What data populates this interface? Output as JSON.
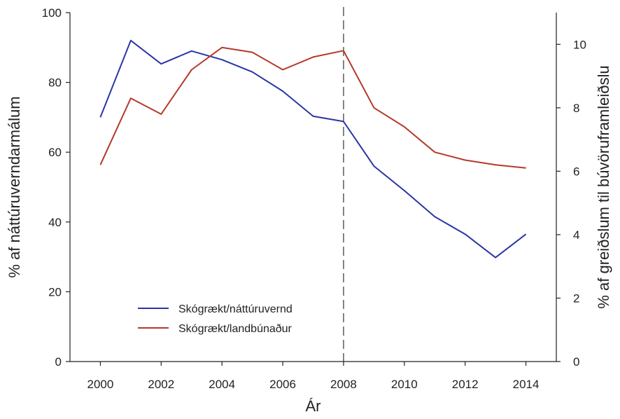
{
  "chart_data": {
    "type": "line",
    "xlabel": "Ár",
    "ylabel_left": "% af náttúruverndarmálum",
    "ylabel_right": "% af greiðslum til búvöruframleiðslu",
    "x_ticks": [
      2000,
      2002,
      2004,
      2006,
      2008,
      2010,
      2012,
      2014
    ],
    "x_range": [
      1999,
      2015
    ],
    "y_left_range": [
      0,
      100
    ],
    "y_left_ticks": [
      0,
      20,
      40,
      60,
      80,
      100
    ],
    "y_right_range": [
      0,
      11
    ],
    "y_right_ticks": [
      0,
      2,
      4,
      6,
      8,
      10
    ],
    "reference_line_x": 2008,
    "legend_position": "lower-left",
    "series": [
      {
        "name": "Skógrækt/náttúruvernd",
        "axis": "left",
        "color": "#2b35a6",
        "x": [
          2000,
          2001,
          2002,
          2003,
          2004,
          2005,
          2006,
          2007,
          2008,
          2009,
          2010,
          2011,
          2012,
          2013,
          2014
        ],
        "values": [
          70,
          92,
          85.3,
          89,
          86.5,
          83,
          77.5,
          70.3,
          68.8,
          56,
          49,
          41.5,
          36.5,
          29.8,
          36.5
        ]
      },
      {
        "name": "Skógrækt/landbúnaður",
        "axis": "right",
        "color": "#b5392a",
        "x": [
          2000,
          2001,
          2002,
          2003,
          2004,
          2005,
          2006,
          2007,
          2008,
          2009,
          2010,
          2011,
          2012,
          2013,
          2014
        ],
        "values": [
          6.2,
          8.3,
          7.8,
          9.2,
          9.9,
          9.75,
          9.2,
          9.6,
          9.8,
          8.0,
          7.4,
          6.6,
          6.35,
          6.2,
          6.1
        ]
      }
    ]
  }
}
